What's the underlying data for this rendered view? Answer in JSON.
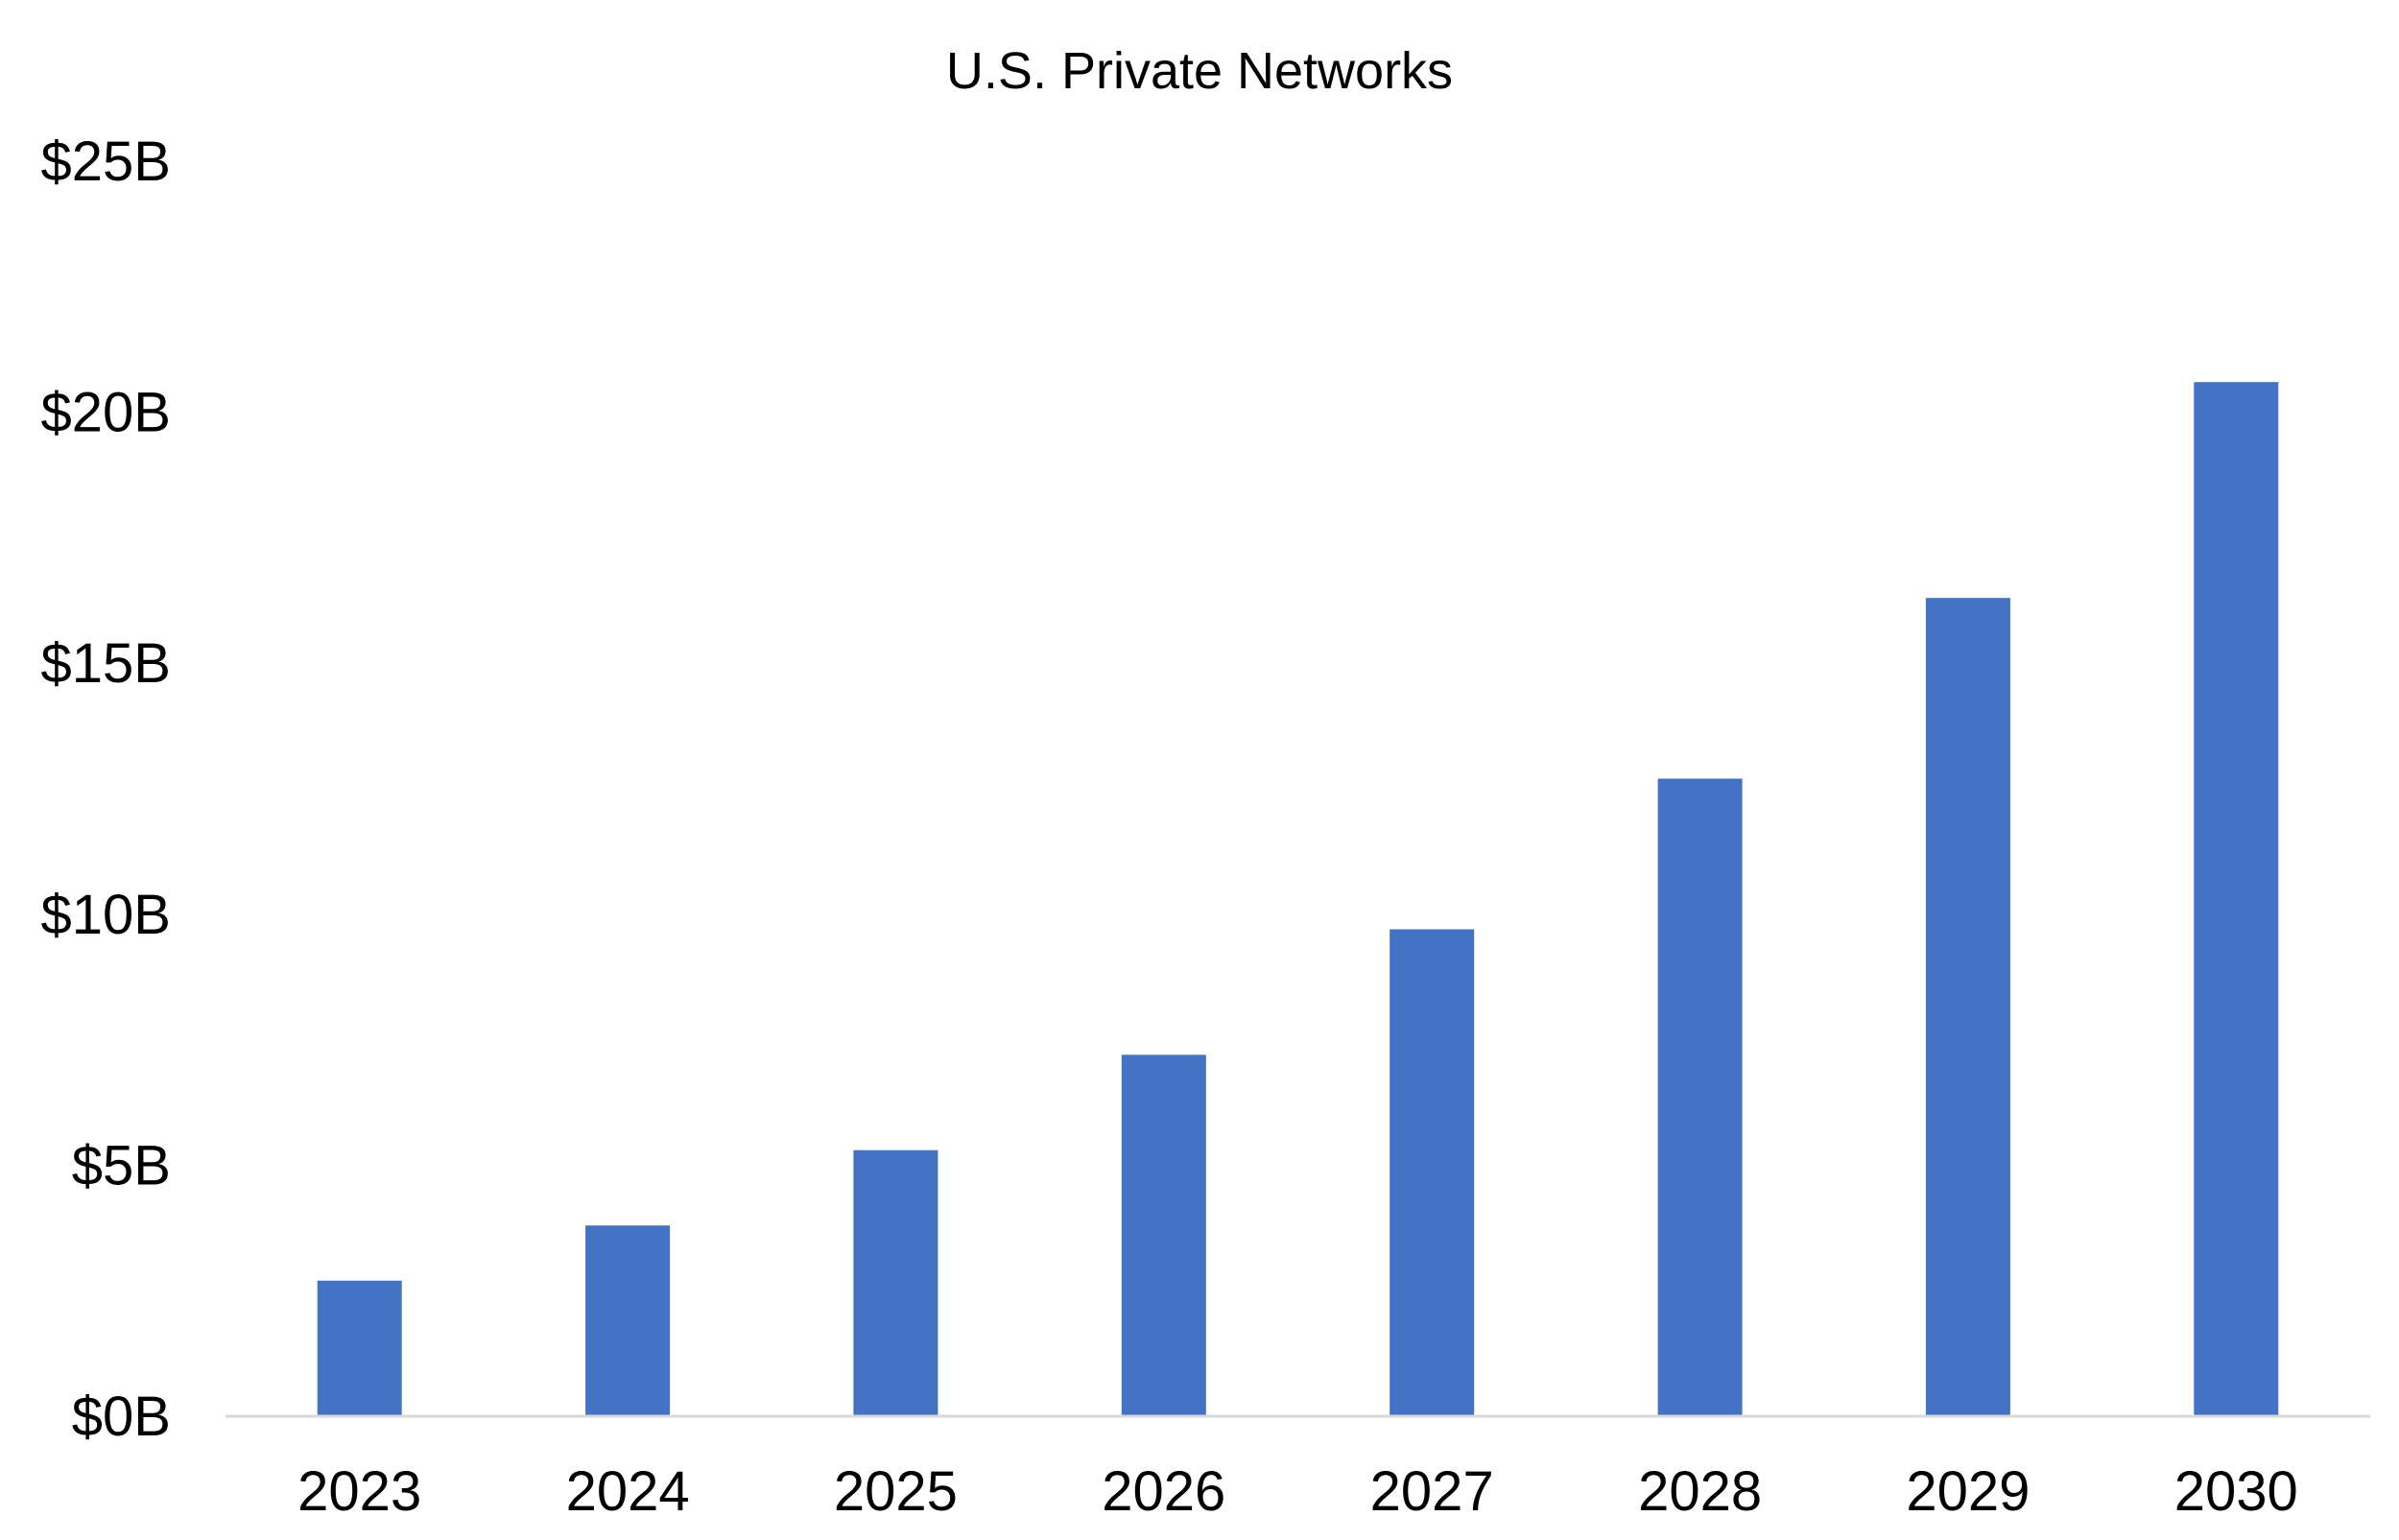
{
  "chart_data": {
    "type": "bar",
    "title": "U.S. Private Networks",
    "categories": [
      "2023",
      "2024",
      "2025",
      "2026",
      "2027",
      "2028",
      "2029",
      "2030"
    ],
    "values": [
      2.7,
      3.8,
      5.3,
      7.2,
      9.7,
      12.7,
      16.3,
      20.6
    ],
    "value_unit": "billion USD",
    "y_ticks": [
      0,
      5,
      10,
      15,
      20,
      25
    ],
    "y_tick_labels": [
      "$0B",
      "$5B",
      "$10B",
      "$15B",
      "$20B",
      "$25B"
    ],
    "ylim": [
      0,
      25
    ],
    "xlabel": "",
    "ylabel": "",
    "grid": false,
    "legend": "none",
    "bar_color": "#4472C4",
    "axis_color": "#D9D9D9"
  }
}
